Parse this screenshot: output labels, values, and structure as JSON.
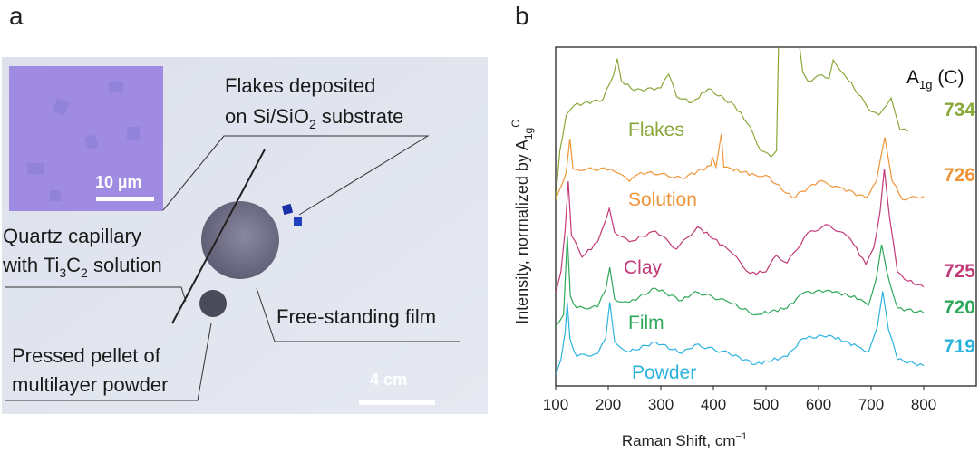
{
  "panel_a": {
    "label": "a",
    "flakes_label_line1": "Flakes deposited",
    "flakes_label_line2_pre": "on Si/SiO",
    "flakes_label_line2_sub": "2",
    "flakes_label_line2_post": " substrate",
    "capillary_line1": "Quartz capillary",
    "capillary_line2_pre": "with Ti",
    "capillary_sub1": "3",
    "capillary_mid": "C",
    "capillary_sub2": "2",
    "capillary_line2_post": " solution",
    "film_label": "Free-standing film",
    "pellet_line1": "Pressed pellet of",
    "pellet_line2": "multilayer powder",
    "inset_scale": "10 µm",
    "photo_scale": "4 cm"
  },
  "panel_b": {
    "label": "b"
  },
  "chart_data": {
    "type": "line",
    "title": "",
    "xlabel": "Raman Shift, cm",
    "xlabel_sup": "−1",
    "ylabel": "Intensity, normalized by A",
    "ylabel_sub": "1g",
    "ylabel_sup": "C",
    "xlim": [
      100,
      900
    ],
    "ylim": [
      0,
      100
    ],
    "xticks": [
      100,
      200,
      300,
      400,
      500,
      600,
      700,
      800
    ],
    "grid": false,
    "peak_header": "A",
    "peak_header_sub": "1g",
    "peak_header_post": " (C)",
    "series": [
      {
        "name": "Flakes",
        "color": "#8aa83a",
        "peak": "734",
        "x": [
          100,
          108,
          120,
          135,
          190,
          210,
          217,
          225,
          250,
          300,
          315,
          330,
          360,
          390,
          440,
          470,
          490,
          510,
          520,
          525,
          555,
          570,
          580,
          600,
          620,
          628,
          650,
          700,
          715,
          738,
          755,
          770
        ],
        "y": [
          55,
          69.4,
          80,
          82.8,
          84.6,
          91.7,
          96.6,
          89.9,
          87.2,
          88,
          92,
          85.4,
          83.7,
          87.7,
          82.8,
          76.5,
          69.4,
          67.6,
          69.4,
          110,
          110,
          92.6,
          89.9,
          91.7,
          90.8,
          96.2,
          91.7,
          81,
          80,
          85,
          75.6,
          75.2
        ]
      },
      {
        "name": "Solution",
        "color": "#f0953a",
        "peak": "726",
        "x": [
          100,
          120,
          127,
          133,
          160,
          205,
          240,
          262,
          300,
          340,
          395,
          398,
          405,
          415,
          420,
          480,
          500,
          550,
          600,
          640,
          690,
          710,
          726,
          740,
          760,
          800
        ],
        "y": [
          55,
          63,
          73,
          64,
          64,
          64,
          60.4,
          63,
          62.6,
          61.3,
          65,
          67.6,
          64.6,
          74.3,
          64.6,
          62.2,
          62.2,
          55.5,
          60.4,
          58.7,
          55.5,
          60.4,
          73.4,
          60.4,
          55,
          56
        ]
      },
      {
        "name": "Clay",
        "color": "#c23a78",
        "peak": "725",
        "x": [
          100,
          110,
          118,
          124,
          130,
          150,
          180,
          195,
          202,
          212,
          240,
          290,
          330,
          370,
          430,
          470,
          500,
          520,
          540,
          580,
          620,
          660,
          690,
          705,
          717,
          725,
          735,
          750,
          770,
          800
        ],
        "y": [
          27.4,
          33.7,
          46,
          60.4,
          44.4,
          38,
          42.6,
          48.8,
          52.4,
          45.3,
          42.6,
          45.7,
          40.4,
          47,
          40,
          33.2,
          33.7,
          38.6,
          36.3,
          45.3,
          47.5,
          43.5,
          35.9,
          40.8,
          51.5,
          64,
          49.7,
          33.7,
          31,
          29.2
        ]
      },
      {
        "name": "Film",
        "color": "#2fa85a",
        "peak": "720",
        "x": [
          100,
          115,
          122,
          128,
          140,
          180,
          195,
          203,
          212,
          240,
          290,
          340,
          365,
          430,
          480,
          540,
          570,
          620,
          680,
          695,
          710,
          720,
          730,
          750,
          800
        ],
        "y": [
          17.6,
          21,
          44.4,
          26.5,
          23,
          23.4,
          28.3,
          35,
          25.6,
          24.7,
          28.8,
          25.2,
          27.9,
          24.7,
          21,
          23,
          27.4,
          28.3,
          25.6,
          23.8,
          31.9,
          41.7,
          33.7,
          23,
          21.6
        ]
      },
      {
        "name": "Powder",
        "color": "#2bb3dd",
        "peak": "719",
        "x": [
          100,
          110,
          118,
          122,
          127,
          140,
          180,
          195,
          203,
          212,
          240,
          290,
          340,
          365,
          430,
          480,
          540,
          570,
          620,
          680,
          695,
          712,
          722,
          733,
          750,
          800
        ],
        "y": [
          3.3,
          7.8,
          15.8,
          24.7,
          14,
          8.7,
          9.6,
          14,
          24.7,
          13,
          10,
          13,
          9.6,
          12.2,
          9.6,
          6.4,
          8.7,
          14,
          15,
          11.3,
          10,
          17.6,
          27.9,
          16.7,
          7.8,
          6
        ]
      }
    ]
  }
}
